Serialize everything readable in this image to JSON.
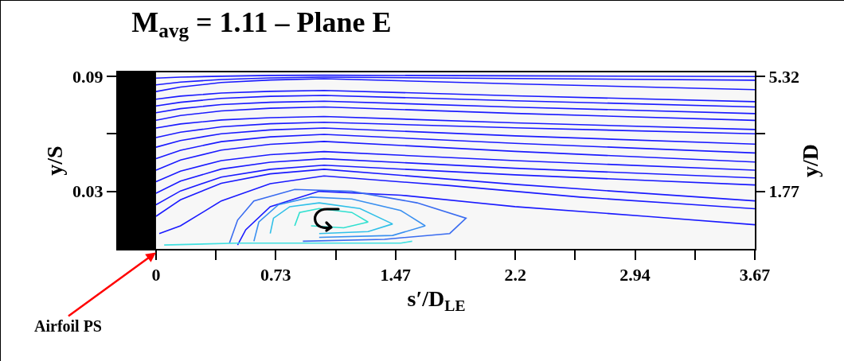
{
  "chart_data": {
    "type": "line",
    "title": "M$_{avg}$ = 1.11 – Plane E",
    "xlabel": "s′/D$_{LE}$",
    "ylabel": "y/S",
    "y2label": "y/D",
    "xlim": [
      -0.234,
      3.67
    ],
    "ylim": [
      0,
      0.092
    ],
    "y2lim": [
      0,
      5.44
    ],
    "xticks": [
      0,
      {
        "value": 0.367,
        "label": null
      },
      {
        "value": 0.734,
        "label": "0.73"
      },
      {
        "value": 1.101,
        "label": null
      },
      {
        "value": 1.468,
        "label": "1.47"
      },
      {
        "value": 1.835,
        "label": null
      },
      {
        "value": 2.202,
        "label": "2.2"
      },
      {
        "value": 2.569,
        "label": null
      },
      {
        "value": 2.936,
        "label": "2.94"
      },
      {
        "value": 3.303,
        "label": null
      },
      3.67
    ],
    "yticks": [
      0.03,
      {
        "value": 0.06,
        "label": null
      },
      0.09
    ],
    "y2ticks": [
      1.77,
      {
        "value": 3.55,
        "label": null
      },
      5.32
    ],
    "grid": false,
    "marker": "none",
    "bands": [
      {
        "axis": "x",
        "from": -0.234,
        "to": 0,
        "label": "Airfoil PS",
        "color": "#000000"
      }
    ],
    "series": [
      {
        "color": "#1a1aff",
        "x": [
          0,
          0.15,
          0.4,
          0.7,
          1.03,
          2.2,
          3.67
        ],
        "values": [
          0.089,
          0.0895,
          0.09,
          0.0904,
          0.0905,
          0.0902,
          0.0898
        ]
      },
      {
        "color": "#1a1aff",
        "x": [
          0,
          0.15,
          0.4,
          0.7,
          1.03,
          2.2,
          3.67
        ],
        "values": [
          0.0855,
          0.0869,
          0.0883,
          0.0891,
          0.0895,
          0.0888,
          0.0879
        ]
      },
      {
        "color": "#1a1aff",
        "x": [
          0,
          0.15,
          0.4,
          0.7,
          1.03,
          2.2,
          3.67
        ],
        "values": [
          0.082,
          0.0843,
          0.0867,
          0.088,
          0.0887,
          0.086,
          0.083
        ]
      },
      {
        "color": "#1a1aff",
        "x": [
          0,
          0.15,
          0.4,
          0.7,
          1.03,
          2.2,
          3.67
        ],
        "values": [
          0.078,
          0.0796,
          0.0812,
          0.0821,
          0.0826,
          0.0798,
          0.0767
        ]
      },
      {
        "color": "#1a1aff",
        "x": [
          0,
          0.15,
          0.4,
          0.7,
          1.03,
          2.2,
          3.67
        ],
        "values": [
          0.0745,
          0.0764,
          0.0784,
          0.0795,
          0.08,
          0.0772,
          0.074
        ]
      },
      {
        "color": "#1a1aff",
        "x": [
          0,
          0.15,
          0.4,
          0.7,
          1.03,
          2.2,
          3.67
        ],
        "values": [
          0.071,
          0.0731,
          0.0752,
          0.0764,
          0.077,
          0.0739,
          0.0705
        ]
      },
      {
        "color": "#1a1aff",
        "x": [
          0,
          0.15,
          0.4,
          0.7,
          1.03,
          2.2,
          3.67
        ],
        "values": [
          0.067,
          0.0695,
          0.0719,
          0.0733,
          0.074,
          0.0706,
          0.067
        ]
      },
      {
        "color": "#1a1aff",
        "x": [
          0,
          0.15,
          0.4,
          0.7,
          1.03,
          2.2,
          3.67
        ],
        "values": [
          0.063,
          0.0651,
          0.0672,
          0.0684,
          0.069,
          0.0657,
          0.0622
        ]
      },
      {
        "color": "#1a1aff",
        "x": [
          0,
          0.15,
          0.4,
          0.7,
          1.03,
          2.2,
          3.67
        ],
        "values": [
          0.058,
          0.0608,
          0.0636,
          0.0652,
          0.066,
          0.0631,
          0.06
        ]
      },
      {
        "color": "#1a1aff",
        "x": [
          0,
          0.15,
          0.4,
          0.7,
          1.03,
          2.2,
          3.67
        ],
        "values": [
          0.053,
          0.0565,
          0.06,
          0.062,
          0.063,
          0.0589,
          0.0546
        ]
      },
      {
        "color": "#1a1aff",
        "x": [
          0,
          0.15,
          0.4,
          0.7,
          1.03,
          2.2,
          3.67
        ],
        "values": [
          0.047,
          0.0514,
          0.0559,
          0.0584,
          0.0597,
          0.055,
          0.05
        ]
      },
      {
        "color": "#1a1aff",
        "x": [
          0,
          0.15,
          0.4,
          0.7,
          1.03,
          2.2,
          3.67
        ],
        "values": [
          0.041,
          0.0463,
          0.0515,
          0.0545,
          0.056,
          0.0508,
          0.0453
        ]
      },
      {
        "color": "#1a1aff",
        "x": [
          0,
          0.15,
          0.4,
          0.7,
          1.03,
          2.2,
          3.67
        ],
        "values": [
          0.035,
          0.0405,
          0.046,
          0.0491,
          0.0507,
          0.046,
          0.041
        ]
      },
      {
        "color": "#1a1aff",
        "x": [
          0,
          0.15,
          0.4,
          0.7,
          1.03,
          2.2,
          3.67
        ],
        "values": [
          0.029,
          0.0353,
          0.0416,
          0.0452,
          0.047,
          0.042,
          0.037
        ]
      },
      {
        "color": "#1a1aff",
        "x": [
          0,
          0.15,
          0.4,
          0.7,
          1.03,
          2.2,
          3.67
        ],
        "values": [
          0.023,
          0.0302,
          0.0374,
          0.0415,
          0.0436,
          0.0386,
          0.0333
        ]
      },
      {
        "color": "#1a1aff",
        "x": [
          0,
          0.15,
          0.4,
          0.7,
          1.03,
          2.2,
          3.67
        ],
        "values": [
          0.017,
          0.0256,
          0.0342,
          0.0391,
          0.0415,
          0.0336,
          0.025
        ]
      },
      {
        "color": "#1a1aff",
        "x": [
          0.02,
          0.15,
          0.4,
          0.7,
          1.03,
          1.8,
          2.6,
          3.67
        ],
        "values": [
          0.008,
          0.012,
          0.025,
          0.034,
          0.038,
          0.033,
          0.027,
          0.0209
        ]
      },
      {
        "color": "#1a1aff",
        "x": [
          0.5,
          0.55,
          0.7,
          1,
          1.5,
          2.2,
          3,
          3.67
        ],
        "values": [
          0.002,
          0.01,
          0.022,
          0.03,
          0.028,
          0.022,
          0.017,
          0.0126
        ]
      },
      {
        "color": "#3a6cf0",
        "x": [
          0.45,
          0.5,
          0.6,
          0.85,
          1.2,
          1.6,
          1.9,
          1.8,
          1.4,
          0.9
        ],
        "values": [
          0.003,
          0.015,
          0.025,
          0.031,
          0.03,
          0.024,
          0.016,
          0.008,
          0.005,
          0.004
        ]
      },
      {
        "color": "#3a90f0",
        "x": [
          0.6,
          0.63,
          0.75,
          0.95,
          1.2,
          1.5,
          1.65,
          1.45,
          1
        ],
        "values": [
          0.004,
          0.014,
          0.023,
          0.027,
          0.026,
          0.02,
          0.012,
          0.007,
          0.006
        ]
      },
      {
        "color": "#30c0e8",
        "x": [
          0.7,
          0.72,
          0.82,
          1,
          1.25,
          1.45,
          1.3,
          1
        ],
        "values": [
          0.008,
          0.016,
          0.022,
          0.024,
          0.021,
          0.013,
          0.009,
          0.008
        ]
      },
      {
        "color": "#30e0d0",
        "x": [
          0.85,
          0.88,
          1,
          1.2,
          1.3,
          1.15,
          0.95
        ],
        "values": [
          0.012,
          0.019,
          0.021,
          0.019,
          0.014,
          0.011,
          0.012
        ]
      },
      {
        "color": "#40e0e0",
        "x": [
          0.05,
          0.5,
          1,
          1.5,
          1.57
        ],
        "values": [
          0.002,
          0.003,
          0.003,
          0.003,
          0.004
        ]
      }
    ]
  }
}
